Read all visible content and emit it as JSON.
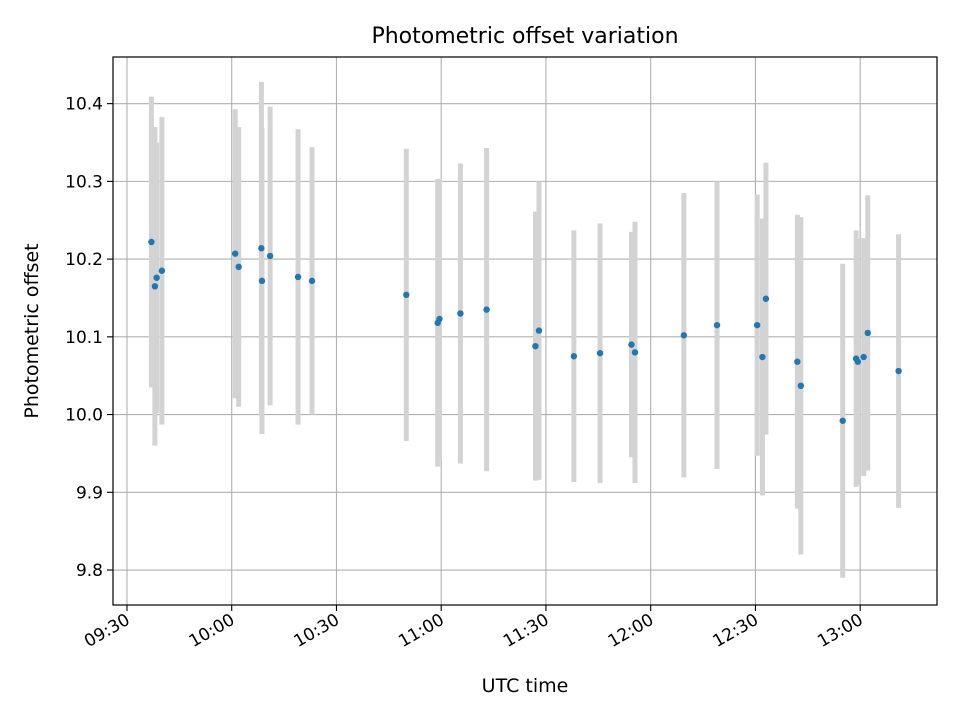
{
  "chart_data": {
    "type": "scatter",
    "title": "Photometric offset variation",
    "xlabel": "UTC time",
    "ylabel": "Photometric offset",
    "x_unit": "time (HH:MM)",
    "xlim": [
      "09:26",
      "13:22"
    ],
    "ylim": [
      9.755,
      10.46
    ],
    "x_ticks": [
      "09:30",
      "10:00",
      "10:30",
      "11:00",
      "11:30",
      "12:00",
      "12:30",
      "13:00"
    ],
    "y_ticks": [
      9.8,
      9.9,
      10.0,
      10.1,
      10.2,
      10.3,
      10.4
    ],
    "grid": true,
    "legend": "none",
    "marker_color": "#1f77b4",
    "errorbar_color": "#d3d3d3",
    "series": [
      {
        "points": [
          {
            "x": "09:37:00",
            "y": 10.222,
            "yerr": 0.187
          },
          {
            "x": "09:38:00",
            "y": 10.165,
            "yerr": 0.205
          },
          {
            "x": "09:38:30",
            "y": 10.176,
            "yerr": 0.174
          },
          {
            "x": "09:40:00",
            "y": 10.185,
            "yerr": 0.198
          },
          {
            "x": "10:01:00",
            "y": 10.207,
            "yerr": 0.186
          },
          {
            "x": "10:02:00",
            "y": 10.19,
            "yerr": 0.18
          },
          {
            "x": "10:08:30",
            "y": 10.214,
            "yerr": 0.214
          },
          {
            "x": "10:08:40",
            "y": 10.172,
            "yerr": 0.197
          },
          {
            "x": "10:11:00",
            "y": 10.204,
            "yerr": 0.192
          },
          {
            "x": "10:19:00",
            "y": 10.177,
            "yerr": 0.19
          },
          {
            "x": "10:23:00",
            "y": 10.172,
            "yerr": 0.172
          },
          {
            "x": "10:50:00",
            "y": 10.154,
            "yerr": 0.188
          },
          {
            "x": "10:59:00",
            "y": 10.118,
            "yerr": 0.185
          },
          {
            "x": "10:59:30",
            "y": 10.123,
            "yerr": 0.18
          },
          {
            "x": "11:05:30",
            "y": 10.13,
            "yerr": 0.193
          },
          {
            "x": "11:13:00",
            "y": 10.135,
            "yerr": 0.208
          },
          {
            "x": "11:27:00",
            "y": 10.088,
            "yerr": 0.173
          },
          {
            "x": "11:28:00",
            "y": 10.108,
            "yerr": 0.192
          },
          {
            "x": "11:38:00",
            "y": 10.075,
            "yerr": 0.162
          },
          {
            "x": "11:45:30",
            "y": 10.079,
            "yerr": 0.167
          },
          {
            "x": "11:54:30",
            "y": 10.09,
            "yerr": 0.145
          },
          {
            "x": "11:55:30",
            "y": 10.08,
            "yerr": 0.168
          },
          {
            "x": "12:09:30",
            "y": 10.102,
            "yerr": 0.183
          },
          {
            "x": "12:19:00",
            "y": 10.115,
            "yerr": 0.185
          },
          {
            "x": "12:30:30",
            "y": 10.115,
            "yerr": 0.168
          },
          {
            "x": "12:32:00",
            "y": 10.074,
            "yerr": 0.178
          },
          {
            "x": "12:33:00",
            "y": 10.149,
            "yerr": 0.175
          },
          {
            "x": "12:42:00",
            "y": 10.068,
            "yerr": 0.189
          },
          {
            "x": "12:43:00",
            "y": 10.037,
            "yerr": 0.217
          },
          {
            "x": "12:55:00",
            "y": 9.992,
            "yerr": 0.202
          },
          {
            "x": "12:58:50",
            "y": 10.072,
            "yerr": 0.165
          },
          {
            "x": "12:59:20",
            "y": 10.068,
            "yerr": 0.158
          },
          {
            "x": "13:01:00",
            "y": 10.074,
            "yerr": 0.153
          },
          {
            "x": "13:02:10",
            "y": 10.105,
            "yerr": 0.177
          },
          {
            "x": "13:11:00",
            "y": 10.056,
            "yerr": 0.176
          }
        ]
      }
    ]
  }
}
